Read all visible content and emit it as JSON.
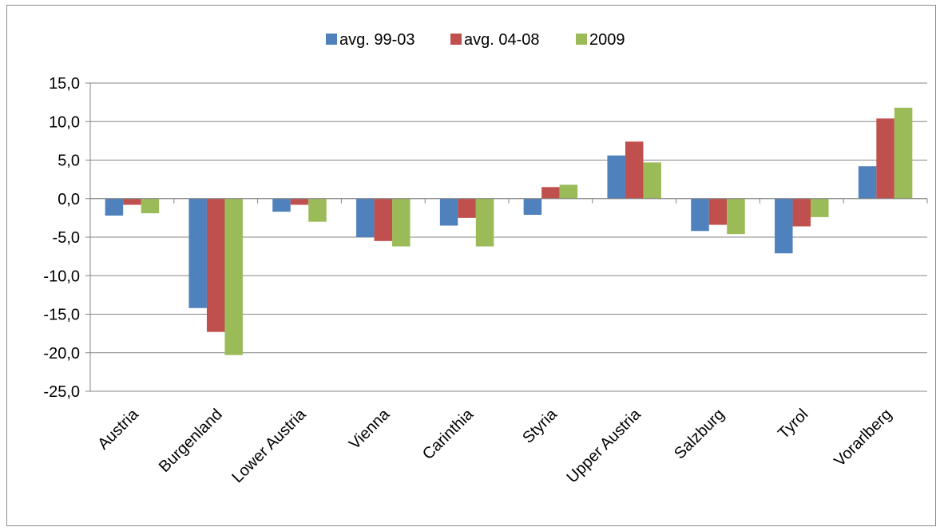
{
  "chart_data": {
    "type": "bar",
    "categories": [
      "Austria",
      "Burgenland",
      "Lower Austria",
      "Vienna",
      "Carinthia",
      "Styria",
      "Upper Austria",
      "Salzburg",
      "Tyrol",
      "Vorarlberg"
    ],
    "series": [
      {
        "name": "avg. 99-03",
        "color": "#4f81bd",
        "values": [
          -2.2,
          -14.2,
          -1.7,
          -5.0,
          -3.5,
          -2.1,
          5.6,
          -4.2,
          -7.1,
          4.2
        ]
      },
      {
        "name": "avg. 04-08",
        "color": "#c0504d",
        "values": [
          -0.8,
          -17.3,
          -0.8,
          -5.5,
          -2.5,
          1.5,
          7.4,
          -3.4,
          -3.6,
          10.4
        ]
      },
      {
        "name": "2009",
        "color": "#9bbb59",
        "values": [
          -1.9,
          -20.3,
          -3.0,
          -6.2,
          -6.2,
          1.8,
          4.7,
          -4.6,
          -2.4,
          11.8
        ]
      }
    ],
    "y_ticks": [
      "15,0",
      "10,0",
      "5,0",
      "0,0",
      "-5,0",
      "-10,0",
      "-15,0",
      "-20,0",
      "-25,0"
    ],
    "ylim": [
      -25,
      15
    ],
    "y_step": 5,
    "grid": true,
    "legend_position": "top-center",
    "title": "",
    "xlabel": "",
    "ylabel": ""
  }
}
